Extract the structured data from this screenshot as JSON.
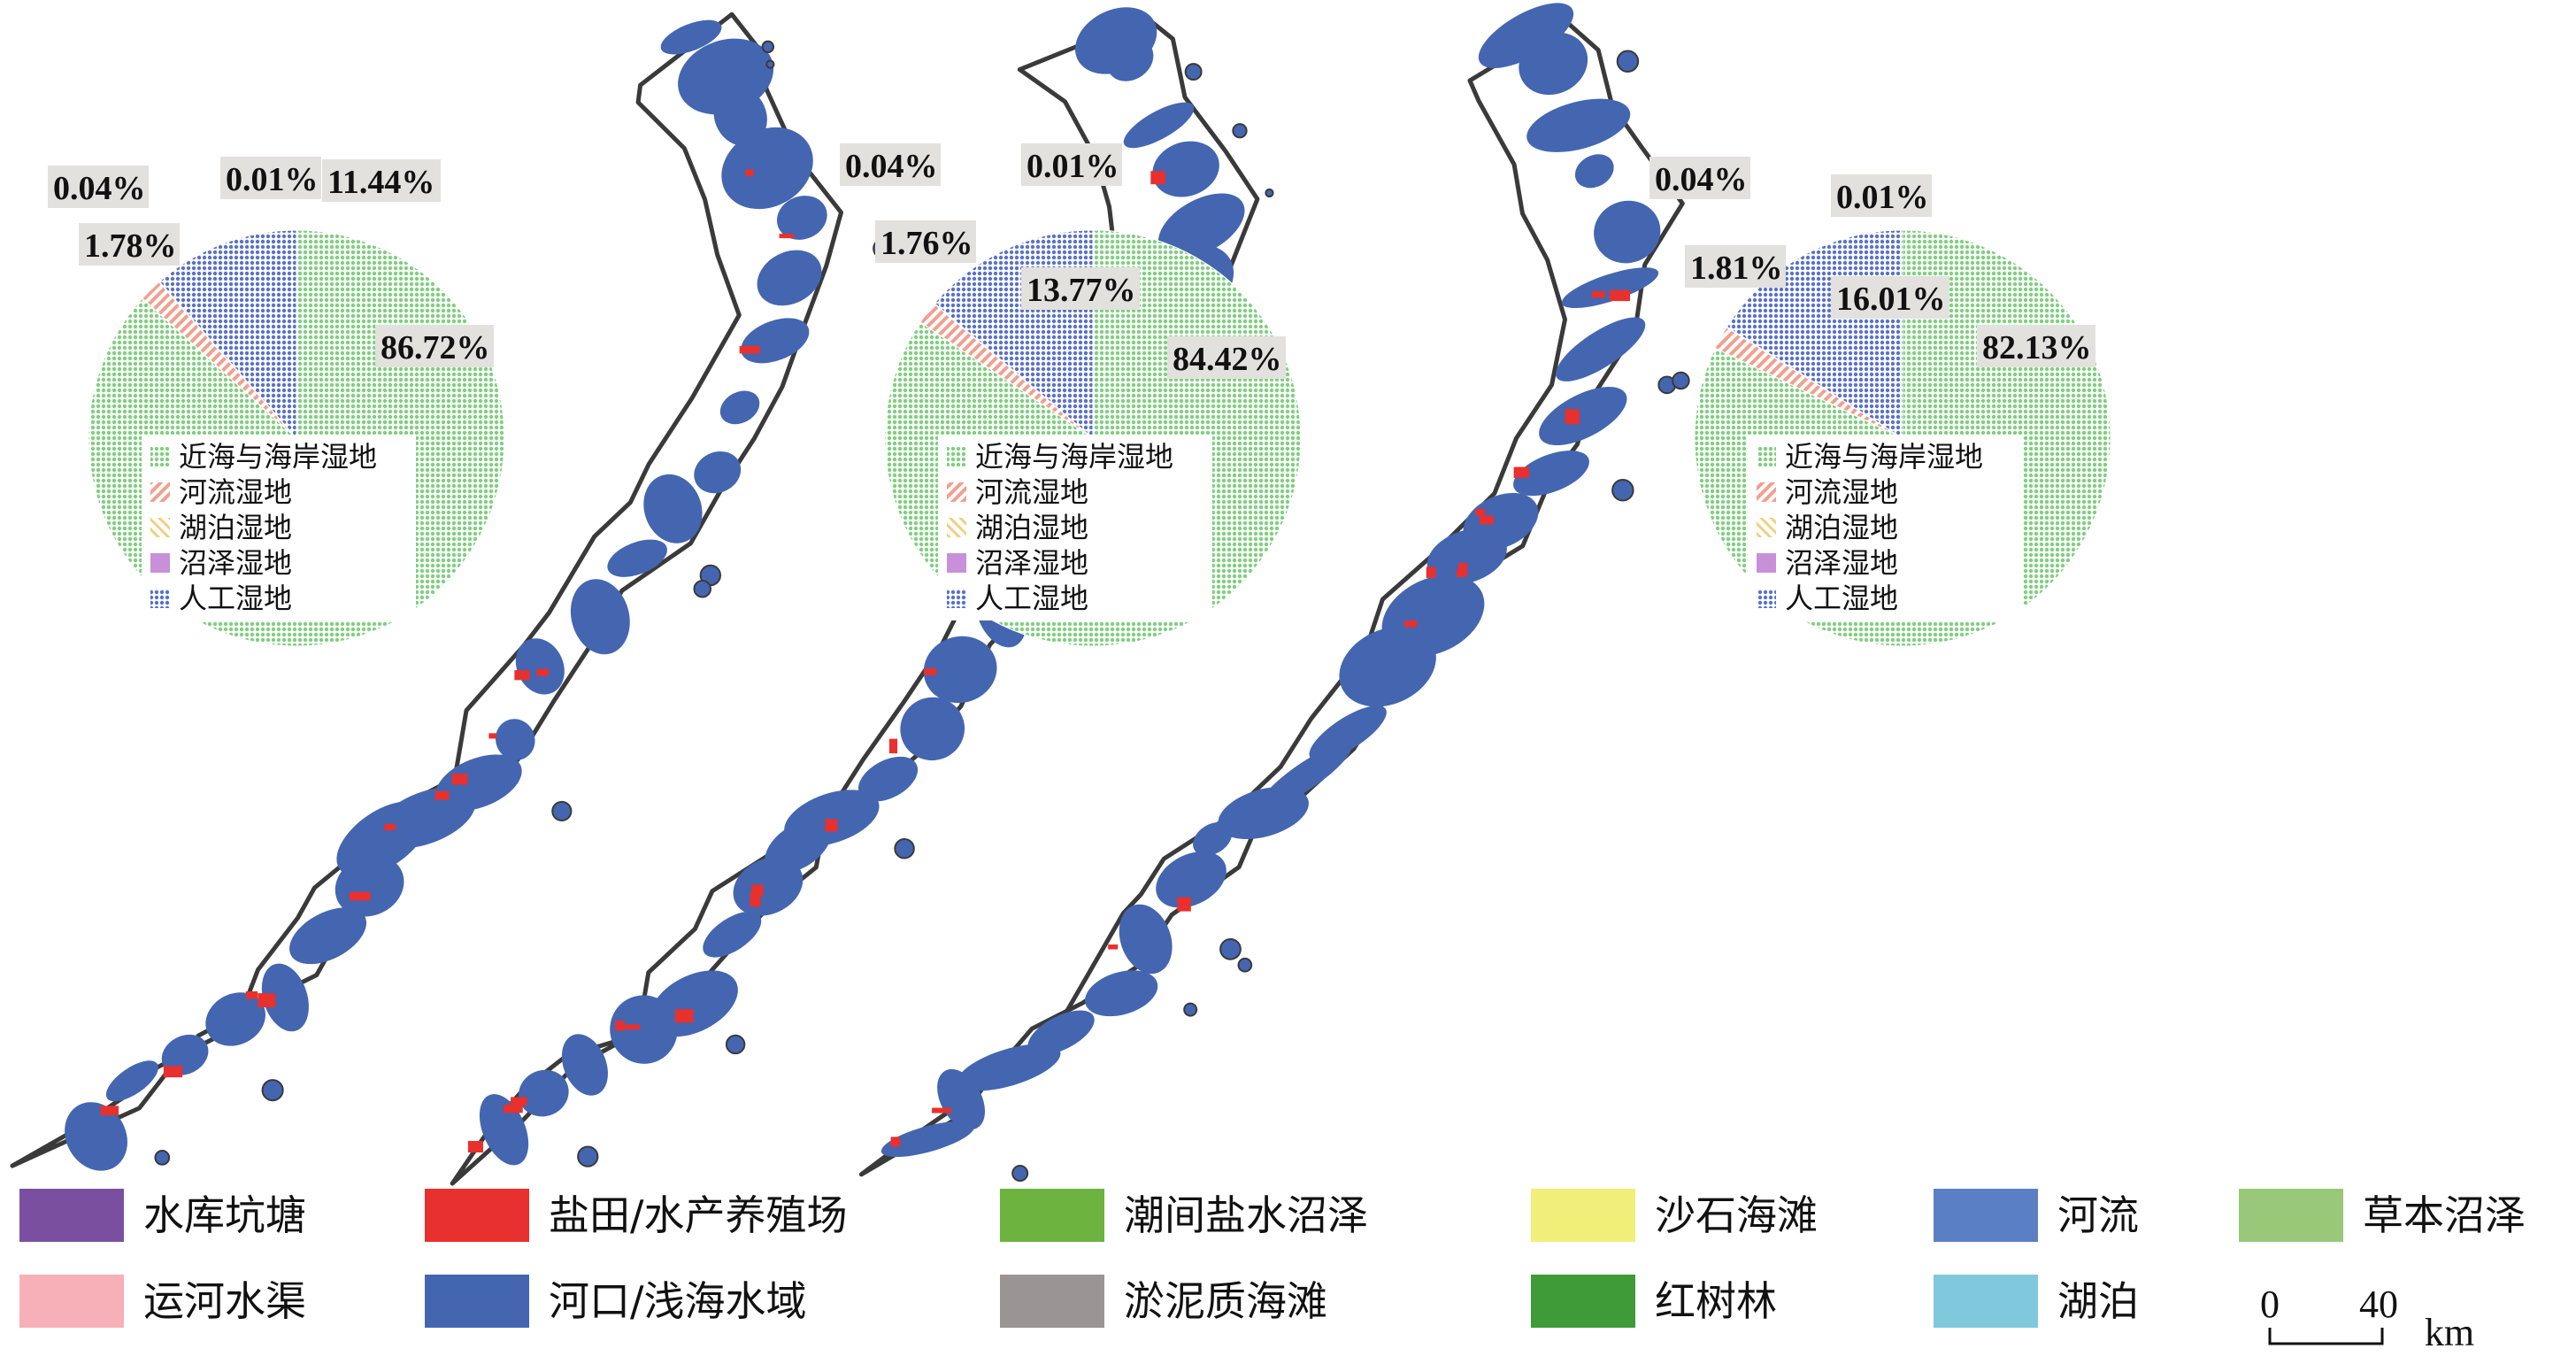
{
  "panels": [
    {
      "id": "panel-1",
      "pie": [
        {
          "category": "近海与海岸湿地",
          "percent": 86.72,
          "label": "86.72%"
        },
        {
          "category": "河流湿地",
          "percent": 1.78,
          "label": "1.78%"
        },
        {
          "category": "湖泊湿地",
          "percent": 0.04,
          "label": "0.04%"
        },
        {
          "category": "沼泽湿地",
          "percent": 0.01,
          "label": "0.01%"
        },
        {
          "category": "人工湿地",
          "percent": 11.44,
          "label": "11.44%"
        }
      ]
    },
    {
      "id": "panel-2",
      "pie": [
        {
          "category": "近海与海岸湿地",
          "percent": 84.42,
          "label": "84.42%"
        },
        {
          "category": "河流湿地",
          "percent": 1.76,
          "label": "1.76%"
        },
        {
          "category": "湖泊湿地",
          "percent": 0.04,
          "label": "0.04%"
        },
        {
          "category": "沼泽湿地",
          "percent": 0.01,
          "label": "0.01%"
        },
        {
          "category": "人工湿地",
          "percent": 13.77,
          "label": "13.77%"
        }
      ]
    },
    {
      "id": "panel-3",
      "pie": [
        {
          "category": "近海与海岸湿地",
          "percent": 82.13,
          "label": "82.13%"
        },
        {
          "category": "河流湿地",
          "percent": 1.81,
          "label": "1.81%"
        },
        {
          "category": "湖泊湿地",
          "percent": 0.04,
          "label": "0.04%"
        },
        {
          "category": "沼泽湿地",
          "percent": 0.01,
          "label": "0.01%"
        },
        {
          "category": "人工湿地",
          "percent": 16.01,
          "label": "16.01%"
        }
      ]
    }
  ],
  "pie_legend": [
    {
      "label": "近海与海岸湿地",
      "color": "#7fcf7f",
      "pattern": "dots-green"
    },
    {
      "label": "河流湿地",
      "color": "#f0a090",
      "pattern": "hatch-red"
    },
    {
      "label": "湖泊湿地",
      "color": "#f0d080",
      "pattern": "hatch-yellow"
    },
    {
      "label": "沼泽湿地",
      "color": "#c890d8",
      "pattern": "solid-purple"
    },
    {
      "label": "人工湿地",
      "color": "#5a72c8",
      "pattern": "dots-blue"
    }
  ],
  "main_legend": [
    {
      "label": "水库坑塘",
      "color": "#7b4fa0"
    },
    {
      "label": "盐田/水产养殖场",
      "color": "#e8302e"
    },
    {
      "label": "潮间盐水沼泽",
      "color": "#6db33f"
    },
    {
      "label": "沙石海滩",
      "color": "#f2ee7a"
    },
    {
      "label": "河流",
      "color": "#5a7fc4"
    },
    {
      "label": "草本沼泽",
      "color": "#98c878"
    },
    {
      "label": "运河水渠",
      "color": "#f7b0b8"
    },
    {
      "label": "河口/浅海水域",
      "color": "#4466b0"
    },
    {
      "label": "淤泥质海滩",
      "color": "#9a9494"
    },
    {
      "label": "红树林",
      "color": "#3f9a38"
    },
    {
      "label": "湖泊",
      "color": "#80c8dc"
    }
  ],
  "scale_bar": {
    "start": "0",
    "end": "40",
    "unit": "km"
  },
  "colors": {
    "coast_outline": "#3a3a3a",
    "estuary_water": "#4466b0",
    "aquaculture": "#e8302e",
    "label_box": "#e3e1dd"
  }
}
